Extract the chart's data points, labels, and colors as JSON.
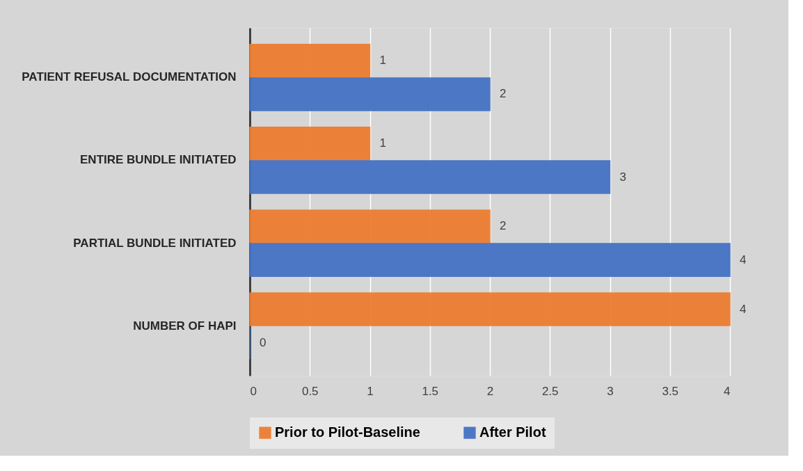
{
  "chart_data": {
    "type": "bar",
    "orientation": "horizontal",
    "categories": [
      "PATIENT REFUSAL DOCUMENTATION",
      "ENTIRE BUNDLE INITIATED",
      "PARTIAL BUNDLE INITIATED",
      "NUMBER OF HAPI"
    ],
    "series": [
      {
        "name": "Prior to Pilot-Baseline",
        "color": "#ed7d31",
        "values": [
          1,
          1,
          2,
          4
        ]
      },
      {
        "name": "After Pilot",
        "color": "#4472c4",
        "values": [
          2,
          3,
          4,
          0
        ]
      }
    ],
    "xlim": [
      0,
      4
    ],
    "xticks": [
      0,
      0.5,
      1,
      1.5,
      2,
      2.5,
      3,
      3.5,
      4
    ],
    "grid": "x",
    "legend": "bottom",
    "data_labels": true
  }
}
